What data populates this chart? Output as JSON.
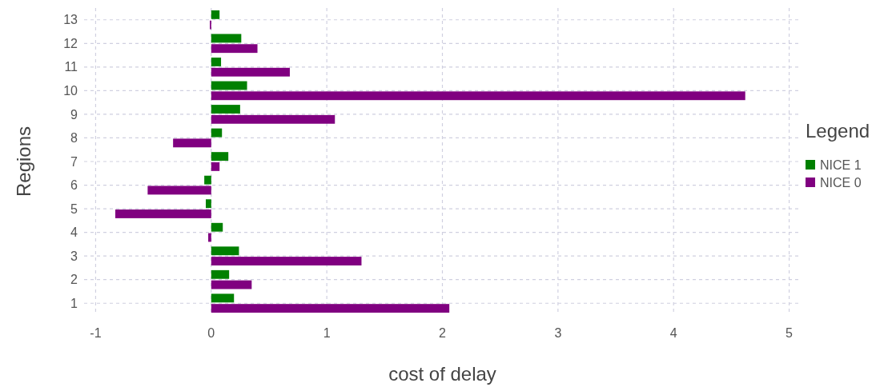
{
  "chart_data": {
    "type": "bar",
    "orientation": "horizontal",
    "xlabel": "cost of delay",
    "ylabel": "Regions",
    "legend_title": "Legend",
    "legend": "right",
    "grid": true,
    "line_style": "dashed",
    "categories": [
      "13",
      "12",
      "11",
      "10",
      "9",
      "8",
      "7",
      "6",
      "5",
      "4",
      "3",
      "2",
      "1"
    ],
    "xlim": [
      -1.1,
      5.1
    ],
    "xticks": [
      -1,
      0,
      1,
      2,
      3,
      4,
      5
    ],
    "series": [
      {
        "name": "NICE 1",
        "color": "#008000",
        "values": [
          0.072,
          0.26,
          0.085,
          0.31,
          0.25,
          0.093,
          0.148,
          -0.06,
          -0.047,
          0.1,
          0.24,
          0.155,
          0.197
        ]
      },
      {
        "name": "NICE 0",
        "color": "#800080",
        "values": [
          -0.012,
          0.4,
          0.68,
          4.62,
          1.07,
          -0.33,
          0.072,
          -0.55,
          -0.83,
          -0.026,
          1.3,
          0.35,
          2.06
        ]
      }
    ]
  }
}
